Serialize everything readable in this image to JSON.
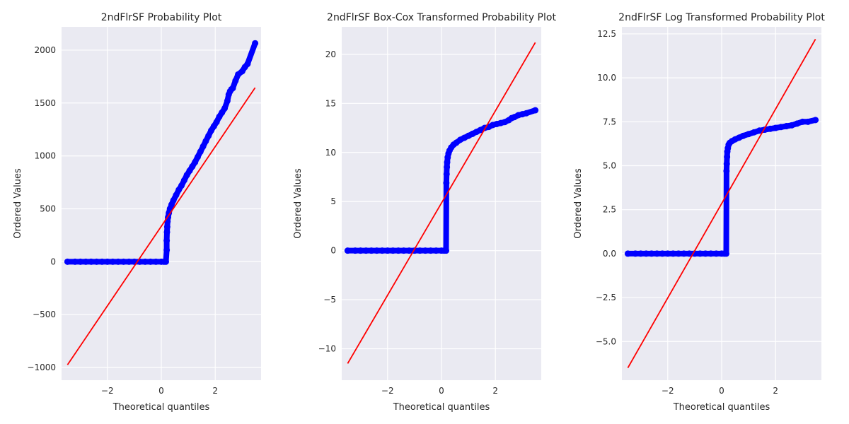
{
  "chart_data": [
    {
      "type": "scatter",
      "title": "2ndFlrSF Probability Plot",
      "xlabel": "Theoretical quantiles",
      "ylabel": "Ordered Values",
      "xlim": [
        -3.7,
        3.7
      ],
      "ylim": [
        -1120,
        2220
      ],
      "xticks": [
        -2,
        0,
        2
      ],
      "xtick_labels": [
        "−2",
        "0",
        "2"
      ],
      "yticks": [
        -1000,
        -500,
        0,
        500,
        1000,
        1500,
        2000
      ],
      "ytick_labels": [
        "−1000",
        "−500",
        "0",
        "500",
        "1000",
        "1500",
        "2000"
      ],
      "grid": true,
      "points": {
        "x": [
          -3.48,
          -3.2,
          -3.0,
          -2.8,
          -2.6,
          -2.4,
          -2.2,
          -2.0,
          -1.8,
          -1.6,
          -1.4,
          -1.2,
          -1.0,
          -0.8,
          -0.6,
          -0.4,
          -0.2,
          0.0,
          0.1,
          0.17,
          0.2,
          0.2,
          0.21,
          0.22,
          0.23,
          0.25,
          0.28,
          0.32,
          0.38,
          0.45,
          0.55,
          0.65,
          0.75,
          0.85,
          0.95,
          1.05,
          1.15,
          1.25,
          1.35,
          1.45,
          1.55,
          1.65,
          1.75,
          1.85,
          1.95,
          2.05,
          2.15,
          2.25,
          2.35,
          2.45,
          2.5,
          2.55,
          2.6,
          2.65,
          2.75,
          2.85,
          3.0,
          3.1,
          3.2,
          3.48
        ],
        "y": [
          0,
          0,
          0,
          0,
          0,
          0,
          0,
          0,
          0,
          0,
          0,
          0,
          0,
          0,
          0,
          0,
          0,
          0,
          0,
          0,
          110,
          200,
          280,
          330,
          380,
          420,
          460,
          500,
          540,
          580,
          630,
          680,
          720,
          770,
          820,
          860,
          900,
          940,
          990,
          1040,
          1090,
          1140,
          1190,
          1240,
          1280,
          1320,
          1370,
          1410,
          1450,
          1520,
          1580,
          1610,
          1630,
          1640,
          1710,
          1770,
          1800,
          1840,
          1870,
          2065
        ]
      },
      "fit_line": {
        "x": [
          -3.48,
          3.48
        ],
        "y": [
          -975,
          1645
        ]
      }
    },
    {
      "type": "scatter",
      "title": "2ndFlrSF Box-Cox Transformed Probability Plot",
      "xlabel": "Theoretical quantiles",
      "ylabel": "Ordered Values",
      "xlim": [
        -3.7,
        3.7
      ],
      "ylim": [
        -13.2,
        22.8
      ],
      "xticks": [
        -2,
        0,
        2
      ],
      "xtick_labels": [
        "−2",
        "0",
        "2"
      ],
      "yticks": [
        -10,
        -5,
        0,
        5,
        10,
        15,
        20
      ],
      "ytick_labels": [
        "−10",
        "−5",
        "0",
        "5",
        "10",
        "15",
        "20"
      ],
      "grid": true,
      "points": {
        "x": [
          -3.48,
          -3.2,
          -3.0,
          -2.8,
          -2.6,
          -2.4,
          -2.2,
          -2.0,
          -1.8,
          -1.6,
          -1.4,
          -1.2,
          -1.0,
          -0.8,
          -0.6,
          -0.4,
          -0.2,
          0.0,
          0.1,
          0.17,
          0.18,
          0.19,
          0.2,
          0.21,
          0.23,
          0.26,
          0.3,
          0.36,
          0.45,
          0.55,
          0.7,
          0.85,
          1.0,
          1.15,
          1.3,
          1.45,
          1.6,
          1.75,
          1.9,
          2.05,
          2.2,
          2.35,
          2.5,
          2.6,
          2.7,
          2.85,
          3.0,
          3.15,
          3.48
        ],
        "y": [
          0,
          0,
          0,
          0,
          0,
          0,
          0,
          0,
          0,
          0,
          0,
          0,
          0,
          0,
          0,
          0,
          0,
          0,
          0,
          0,
          6.9,
          7.8,
          8.5,
          9.0,
          9.5,
          9.9,
          10.2,
          10.5,
          10.8,
          11.0,
          11.3,
          11.5,
          11.7,
          11.9,
          12.1,
          12.3,
          12.5,
          12.6,
          12.8,
          12.9,
          13.0,
          13.1,
          13.3,
          13.5,
          13.6,
          13.8,
          13.9,
          14.0,
          14.3
        ]
      },
      "fit_line": {
        "x": [
          -3.48,
          3.48
        ],
        "y": [
          -11.5,
          21.2
        ]
      }
    },
    {
      "type": "scatter",
      "title": "2ndFlrSF Log Transformed Probability Plot",
      "xlabel": "Theoretical quantiles",
      "ylabel": "Ordered Values",
      "xlim": [
        -3.7,
        3.7
      ],
      "ylim": [
        -7.2,
        12.9
      ],
      "xticks": [
        -2,
        0,
        2
      ],
      "xtick_labels": [
        "−2",
        "0",
        "2"
      ],
      "yticks": [
        -5,
        -2.5,
        0,
        2.5,
        5,
        7.5,
        10,
        12.5
      ],
      "ytick_labels": [
        "−5.0",
        "−2.5",
        "0.0",
        "2.5",
        "5.0",
        "7.5",
        "10.0",
        "12.5"
      ],
      "grid": true,
      "points": {
        "x": [
          -3.48,
          -3.2,
          -3.0,
          -2.8,
          -2.6,
          -2.4,
          -2.2,
          -2.0,
          -1.8,
          -1.6,
          -1.4,
          -1.2,
          -1.0,
          -0.8,
          -0.6,
          -0.4,
          -0.2,
          0.0,
          0.1,
          0.17,
          0.18,
          0.19,
          0.2,
          0.21,
          0.23,
          0.26,
          0.3,
          0.38,
          0.5,
          0.65,
          0.8,
          1.0,
          1.2,
          1.4,
          1.6,
          1.8,
          2.0,
          2.2,
          2.4,
          2.6,
          2.8,
          3.0,
          3.2,
          3.48
        ],
        "y": [
          0,
          0,
          0,
          0,
          0,
          0,
          0,
          0,
          0,
          0,
          0,
          0,
          0,
          0,
          0,
          0,
          0,
          0,
          0,
          0,
          4.7,
          5.1,
          5.5,
          5.8,
          6.0,
          6.2,
          6.3,
          6.4,
          6.5,
          6.6,
          6.7,
          6.8,
          6.9,
          7.0,
          7.05,
          7.1,
          7.15,
          7.2,
          7.25,
          7.3,
          7.4,
          7.5,
          7.5,
          7.6
        ]
      },
      "fit_line": {
        "x": [
          -3.48,
          3.48
        ],
        "y": [
          -6.5,
          12.2
        ]
      }
    }
  ]
}
